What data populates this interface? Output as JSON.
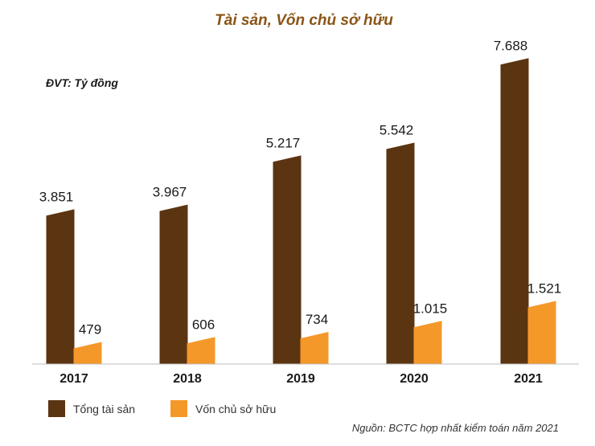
{
  "chart_data": {
    "type": "bar",
    "title": "Tài sản, Vốn chủ sở hữu",
    "unit_label": "ĐVT: Tỷ đồng",
    "categories": [
      "2017",
      "2018",
      "2019",
      "2020",
      "2021"
    ],
    "series": [
      {
        "name": "Tổng tài sản",
        "values": [
          3851,
          3967,
          5217,
          5542,
          7688
        ],
        "labels": [
          "3.851",
          "3.967",
          "5.217",
          "5.542",
          "7.688"
        ],
        "color": "#5b3411"
      },
      {
        "name": "Vốn chủ sở hữu",
        "values": [
          479,
          606,
          734,
          1015,
          1521
        ],
        "labels": [
          "479",
          "606",
          "734",
          "1.015",
          "1.521"
        ],
        "color": "#f4982a"
      }
    ],
    "ylim": [
      0,
      7900
    ],
    "grid": false,
    "legend_position": "bottom-left",
    "source": "Nguồn: BCTC hợp nhất kiểm toán năm 2021"
  }
}
